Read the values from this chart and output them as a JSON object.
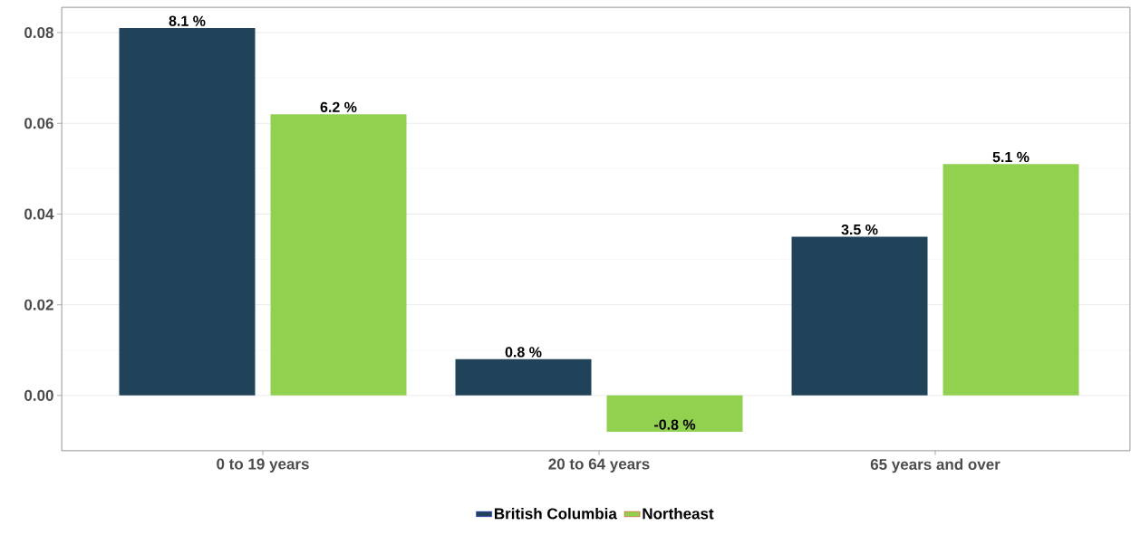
{
  "chart_data": {
    "type": "bar",
    "categories": [
      "0 to 19 years",
      "20 to 64 years",
      "65 years and over"
    ],
    "series": [
      {
        "name": "British Columbia",
        "color": "#21435a",
        "values": [
          0.081,
          0.008,
          0.035
        ],
        "value_labels": [
          "8.1 %",
          "0.8 %",
          "3.5 %"
        ]
      },
      {
        "name": "Northeast",
        "color": "#92d050",
        "values": [
          0.062,
          -0.008,
          0.051
        ],
        "value_labels": [
          "6.2 %",
          "-0.8 %",
          "5.1 %"
        ]
      }
    ],
    "ylim": [
      -0.0122,
      0.0856
    ],
    "yticks": [
      {
        "value": 0,
        "label": "0.00"
      },
      0.02,
      0.04,
      0.06,
      0.08
    ],
    "grid": "y",
    "legend": "bottom"
  }
}
